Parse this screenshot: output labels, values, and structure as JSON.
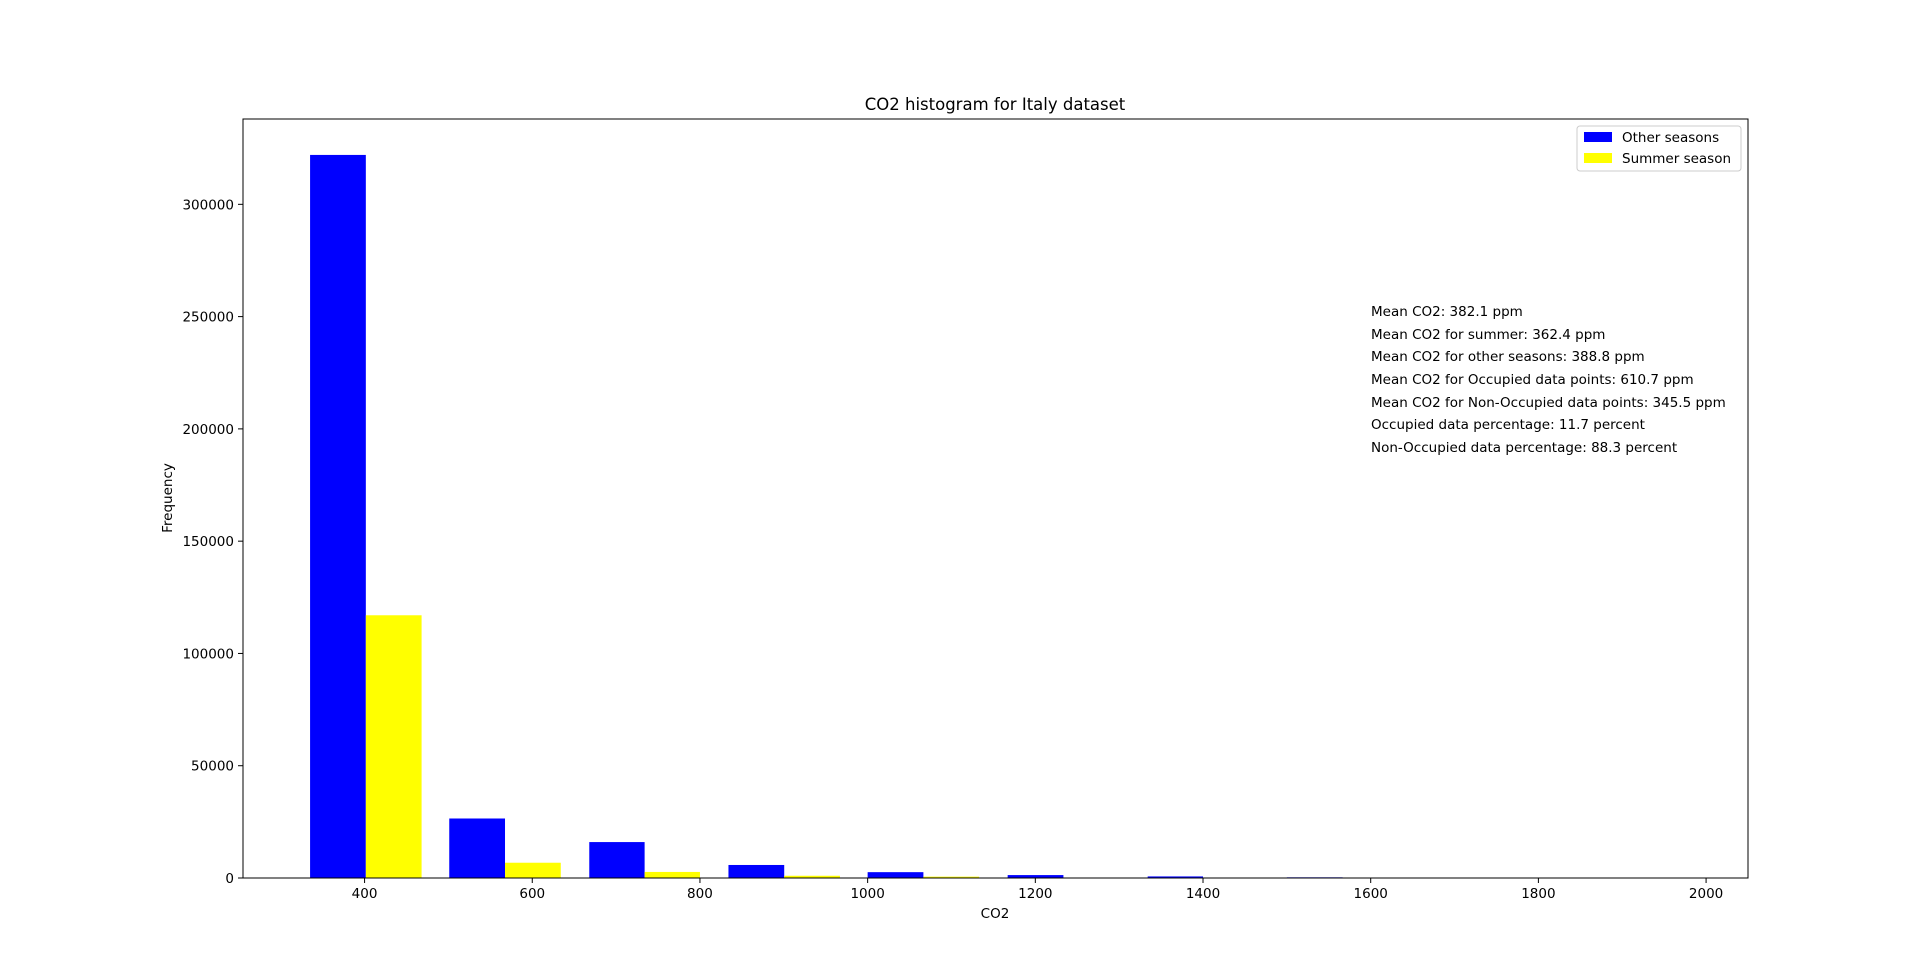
{
  "chart_data": {
    "type": "bar",
    "title": "CO2 histogram for Italy dataset",
    "xlabel": "CO2",
    "ylabel": "Frequency",
    "xlim": [
      255,
      2050
    ],
    "ylim": [
      0,
      338000
    ],
    "xticks": [
      400,
      600,
      800,
      1000,
      1200,
      1400,
      1600,
      1800,
      2000
    ],
    "yticks": [
      0,
      50000,
      100000,
      150000,
      200000,
      250000,
      300000
    ],
    "bins": [
      [
        335,
        468
      ],
      [
        501,
        634
      ],
      [
        668,
        800
      ],
      [
        834,
        967
      ],
      [
        1000,
        1133
      ],
      [
        1167,
        1300
      ],
      [
        1334,
        1466
      ],
      [
        1500,
        1633
      ]
    ],
    "series": [
      {
        "name": "Other seasons",
        "color": "#0000ff",
        "values": [
          322000,
          26500,
          16000,
          5800,
          2600,
          1300,
          700,
          300
        ]
      },
      {
        "name": "Summer season",
        "color": "#ffff00",
        "values": [
          117000,
          6800,
          2700,
          1000,
          600,
          200,
          100,
          50
        ]
      }
    ],
    "legend_position": "top-right",
    "grid": false,
    "annotations": [
      "Mean CO2: 382.1 ppm",
      "Mean CO2 for summer: 362.4 ppm",
      "Mean CO2 for other seasons: 388.8 ppm",
      "Mean CO2 for Occupied data points: 610.7 ppm",
      "Mean CO2 for Non-Occupied data points: 345.5 ppm",
      "Occupied data percentage: 11.7 percent",
      "Non-Occupied data percentage: 88.3 percent"
    ]
  }
}
